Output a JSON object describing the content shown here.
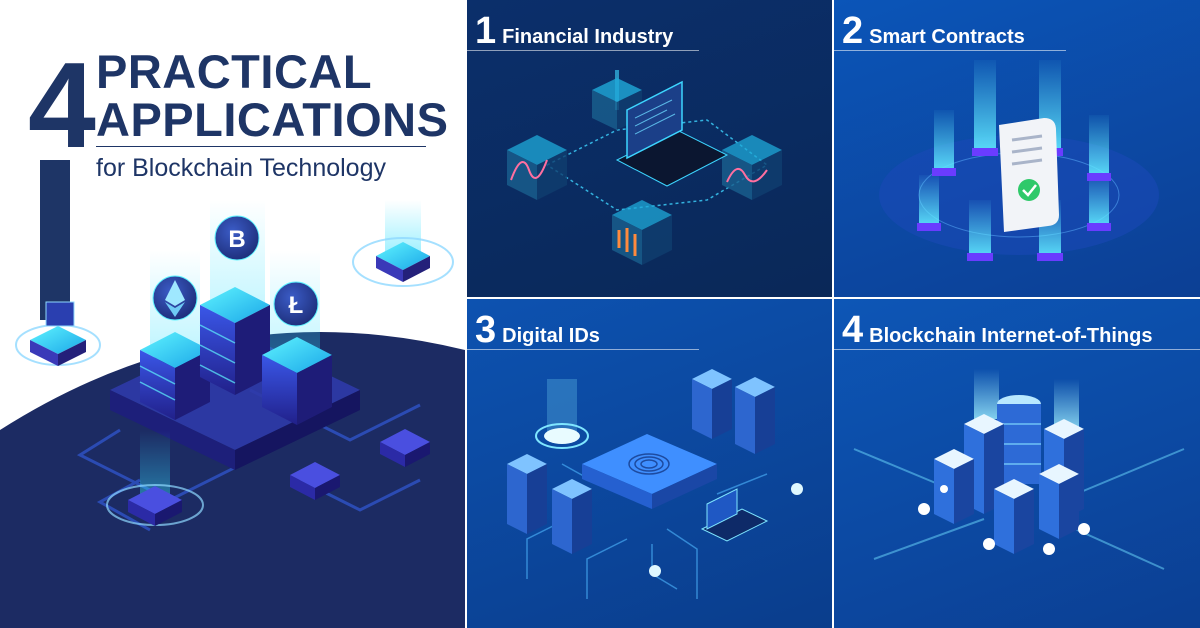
{
  "hero": {
    "number": "4",
    "line1": "PRACTICAL",
    "line2": "APPLICATIONS",
    "subtitle": "for Blockchain Technology",
    "coin_bitcoin": "B",
    "coin_litecoin": "Ł",
    "coin_ethereum": "ethereum-icon"
  },
  "panels": [
    {
      "number": "1",
      "label": "Financial Industry",
      "illustration": "laptop-with-charts-icon"
    },
    {
      "number": "2",
      "label": "Smart Contracts",
      "illustration": "contract-scroll-icon"
    },
    {
      "number": "3",
      "label": "Digital IDs",
      "illustration": "fingerprint-chip-icon"
    },
    {
      "number": "4",
      "label": "Blockchain Internet-of-Things",
      "illustration": "iot-servers-icon"
    }
  ],
  "colors": {
    "navy": "#1e3566",
    "panel_dark": "#0a2858",
    "panel_blue": "#0c4aa4",
    "glow_cyan": "#34e0ff",
    "glow_purple": "#7a3cff"
  }
}
